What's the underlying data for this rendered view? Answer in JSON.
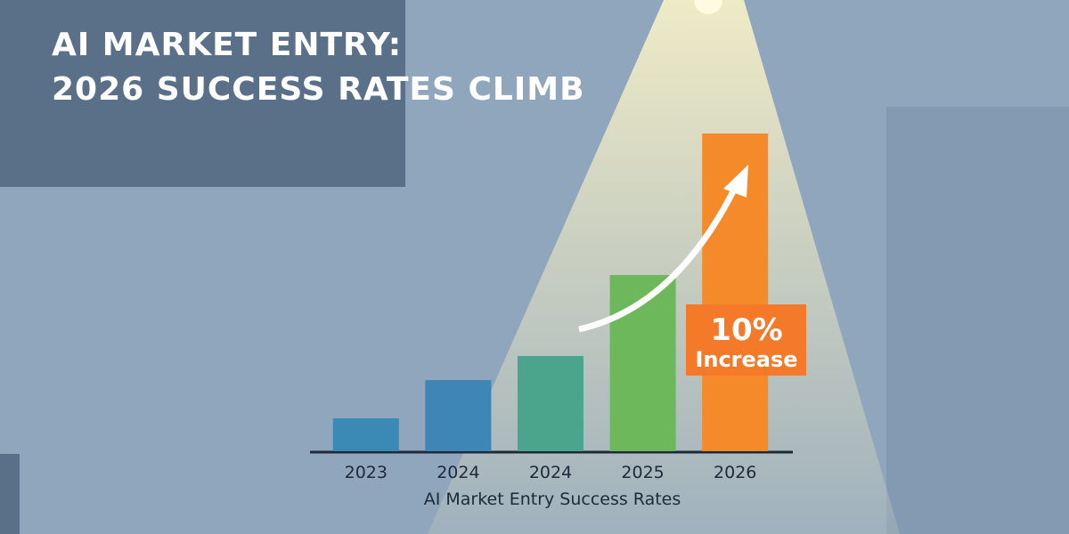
{
  "chart_data": {
    "type": "bar",
    "title": [
      "AI MARKET ENTRY:",
      "2026 SUCCESS RATES CLIMB"
    ],
    "categories": [
      "2023",
      "2024",
      "2024",
      "2025",
      "2026"
    ],
    "values": [
      37,
      80,
      107,
      198,
      357
    ],
    "colors": [
      "#3a8ab5",
      "#3d86b6",
      "#4aa58c",
      "#6cb85a",
      "#f58a2a"
    ],
    "xlabel": "AI Market Entry Success Rates",
    "annotation": [
      "10%",
      "Increase"
    ]
  }
}
